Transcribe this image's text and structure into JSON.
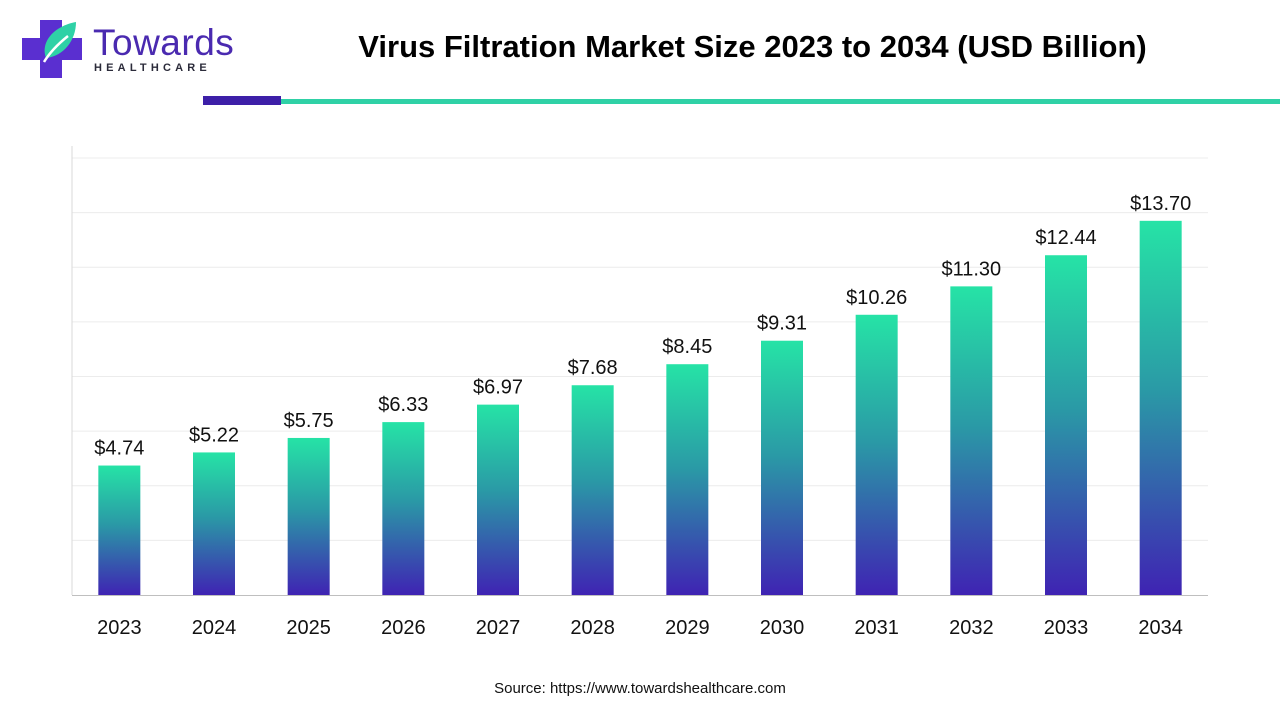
{
  "header": {
    "logo_word": "Towards",
    "logo_sub": "HEALTHCARE",
    "title": "Virus Filtration Market Size 2023 to 2034 (USD Billion)"
  },
  "footer": {
    "source": "Source: https://www.towardshealthcare.com"
  },
  "colors": {
    "bar_top": "#26e3a6",
    "bar_mid": "#2a9aa6",
    "bar_bottom": "#3f23b3",
    "accent_purple": "#3d1fa8",
    "accent_teal": "#2fd1a6"
  },
  "chart_data": {
    "type": "bar",
    "title": "Virus Filtration Market Size 2023 to 2034 (USD Billion)",
    "xlabel": "",
    "ylabel": "",
    "categories": [
      "2023",
      "2024",
      "2025",
      "2026",
      "2027",
      "2028",
      "2029",
      "2030",
      "2031",
      "2032",
      "2033",
      "2034"
    ],
    "values": [
      4.74,
      5.22,
      5.75,
      6.33,
      6.97,
      7.68,
      8.45,
      9.31,
      10.26,
      11.3,
      12.44,
      13.7
    ],
    "value_labels": [
      "$4.74",
      "$5.22",
      "$5.75",
      "$6.33",
      "$6.97",
      "$7.68",
      "$8.45",
      "$9.31",
      "$10.26",
      "$11.30",
      "$12.44",
      "$13.70"
    ],
    "ylim": [
      0,
      16
    ],
    "grid": true,
    "legend": "none"
  }
}
